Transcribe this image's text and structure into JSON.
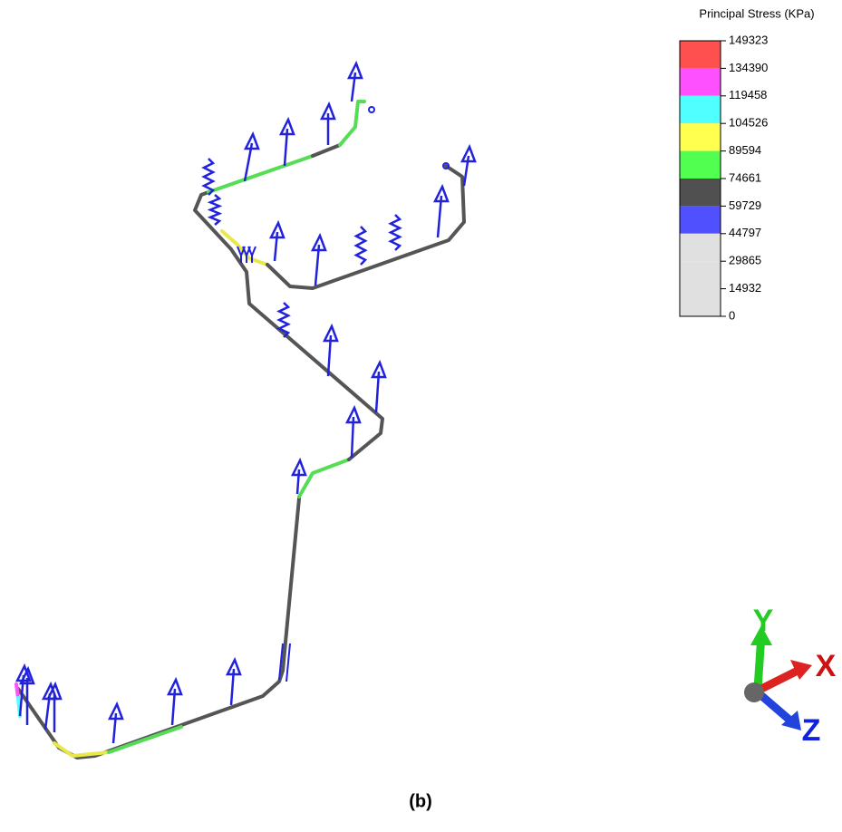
{
  "legend": {
    "title": "Principal Stress (KPa)",
    "ticks": [
      149323,
      134390,
      119458,
      104526,
      89594,
      74661,
      59729,
      44797,
      29865,
      14932,
      0
    ],
    "colors": [
      "#ff5050",
      "#ff50ff",
      "#50ffff",
      "#ffff50",
      "#50ff50",
      "#505050",
      "#5050ff",
      "#e0e0e0"
    ]
  },
  "axes": {
    "x": "X",
    "y": "Y",
    "z": "Z"
  },
  "caption": "(b)"
}
